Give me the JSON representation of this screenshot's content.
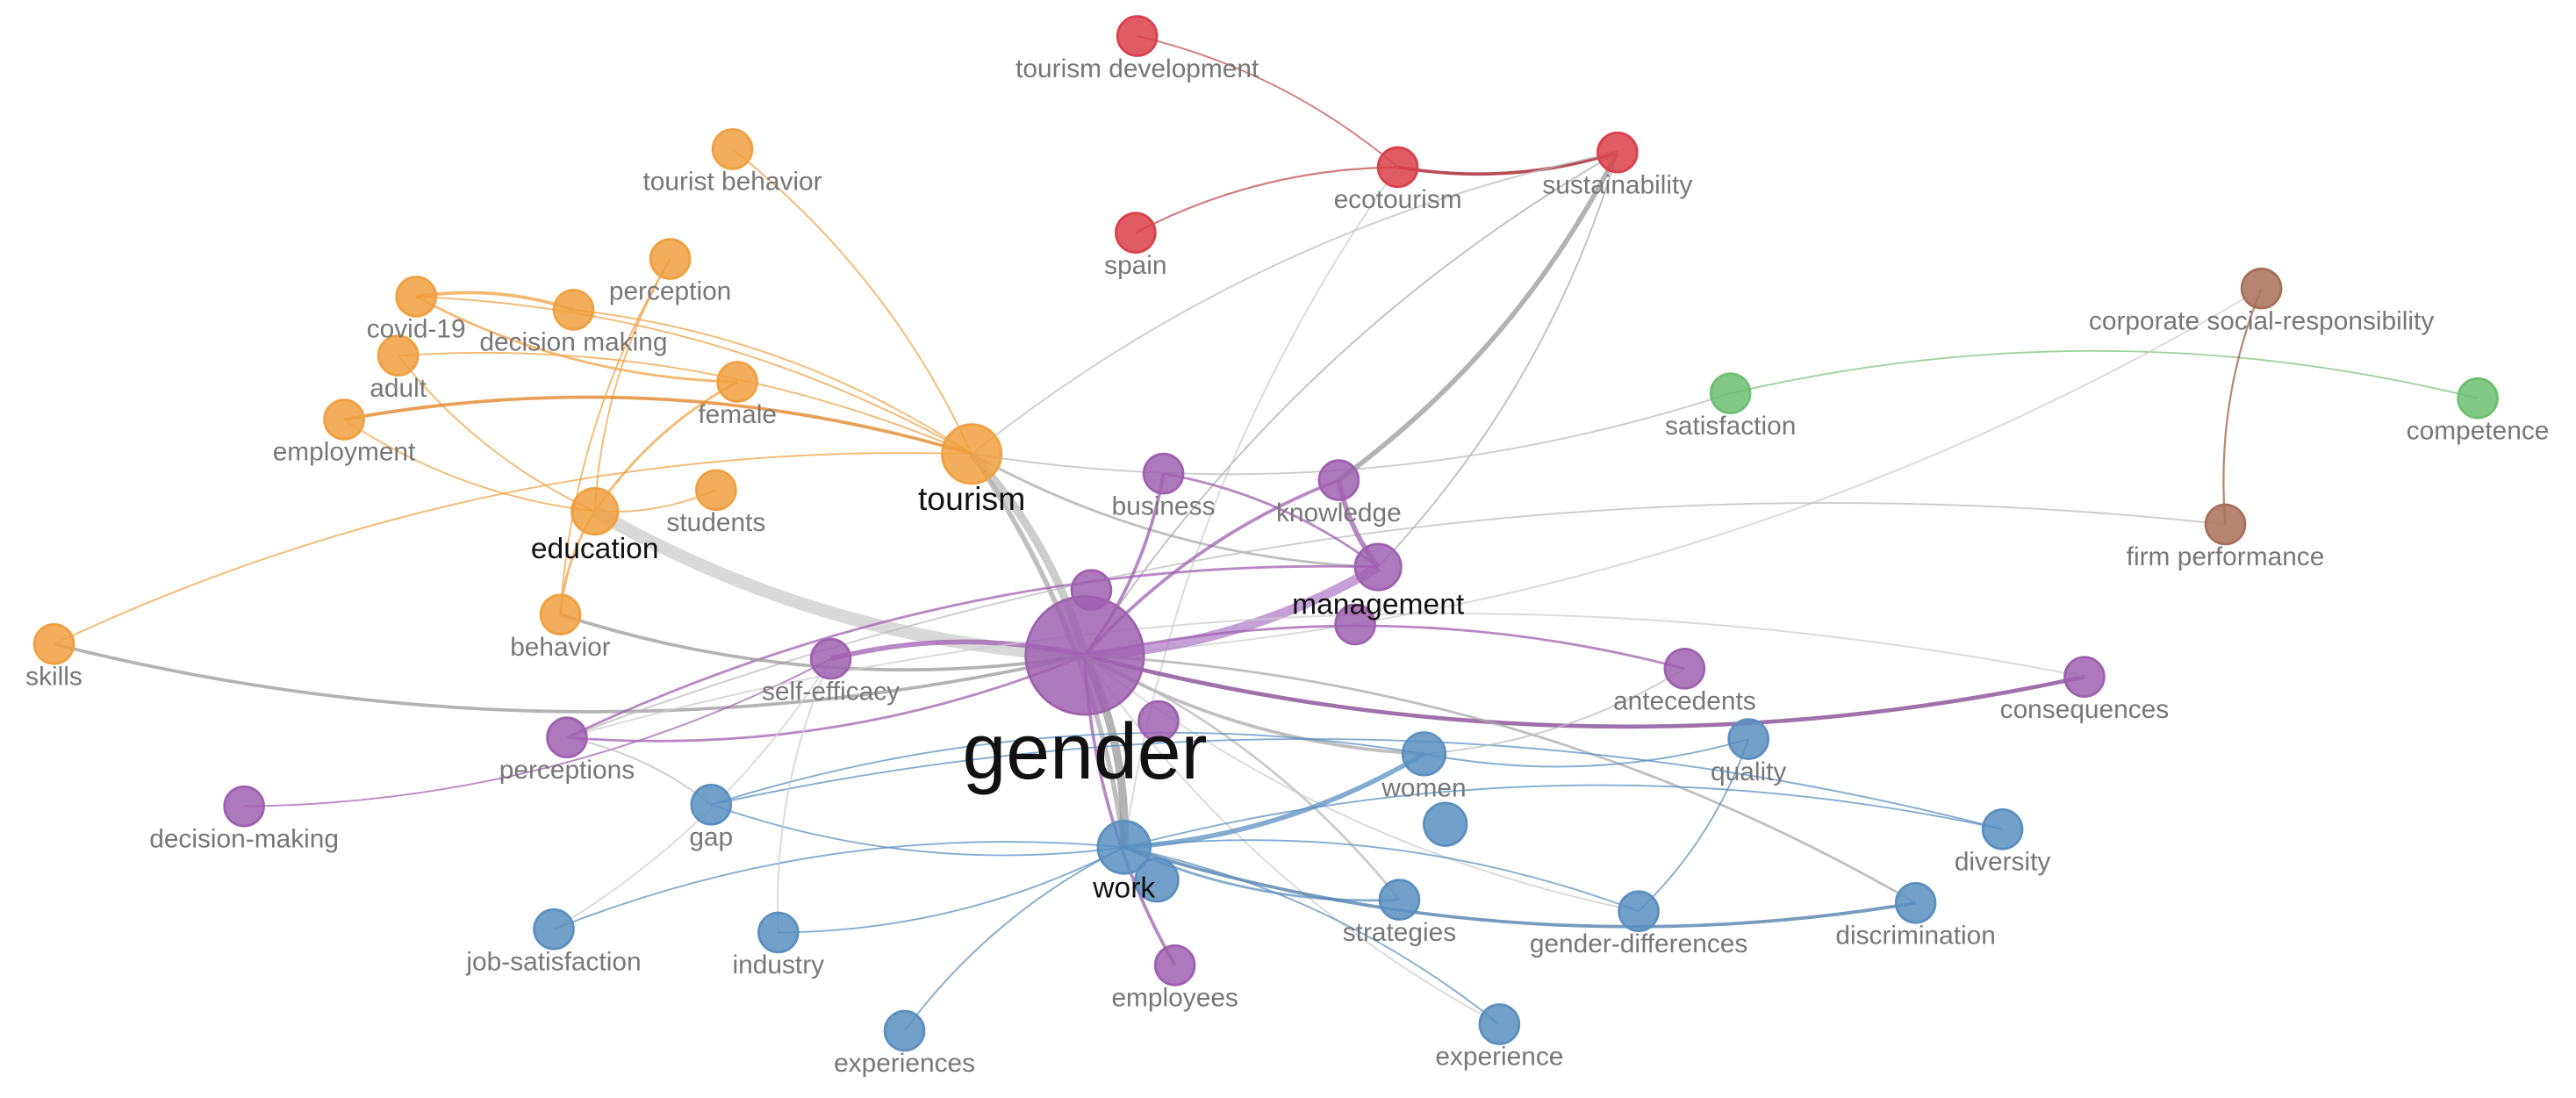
{
  "nodes": [
    {
      "label": "tourism development"
    },
    {
      "label": "ecotourism"
    },
    {
      "label": "sustainability"
    },
    {
      "label": "spain"
    },
    {
      "label": "tourist behavior"
    },
    {
      "label": "perception"
    },
    {
      "label": "covid-19"
    },
    {
      "label": "decision making"
    },
    {
      "label": "adult"
    },
    {
      "label": "female"
    },
    {
      "label": "employment"
    },
    {
      "label": "tourism"
    },
    {
      "label": "education"
    },
    {
      "label": "students"
    },
    {
      "label": "behavior"
    },
    {
      "label": "skills"
    },
    {
      "label": "satisfaction"
    },
    {
      "label": "competence"
    },
    {
      "label": "corporate social-responsibility"
    },
    {
      "label": "firm performance"
    },
    {
      "label": "business"
    },
    {
      "label": "knowledge"
    },
    {
      "label": "management"
    },
    {
      "label": "gender"
    },
    {
      "label": "self-efficacy"
    },
    {
      "label": "antecedents"
    },
    {
      "label": "consequences"
    },
    {
      "label": "perceptions"
    },
    {
      "label": "decision-making"
    },
    {
      "label": "employees"
    },
    {
      "label": "women"
    },
    {
      "label": "quality"
    },
    {
      "label": "gap"
    },
    {
      "label": "work"
    },
    {
      "label": "diversity"
    },
    {
      "label": "strategies"
    },
    {
      "label": "gender-differences"
    },
    {
      "label": "discrimination"
    },
    {
      "label": "job-satisfaction"
    },
    {
      "label": "industry"
    },
    {
      "label": "experiences"
    },
    {
      "label": "experience"
    }
  ]
}
